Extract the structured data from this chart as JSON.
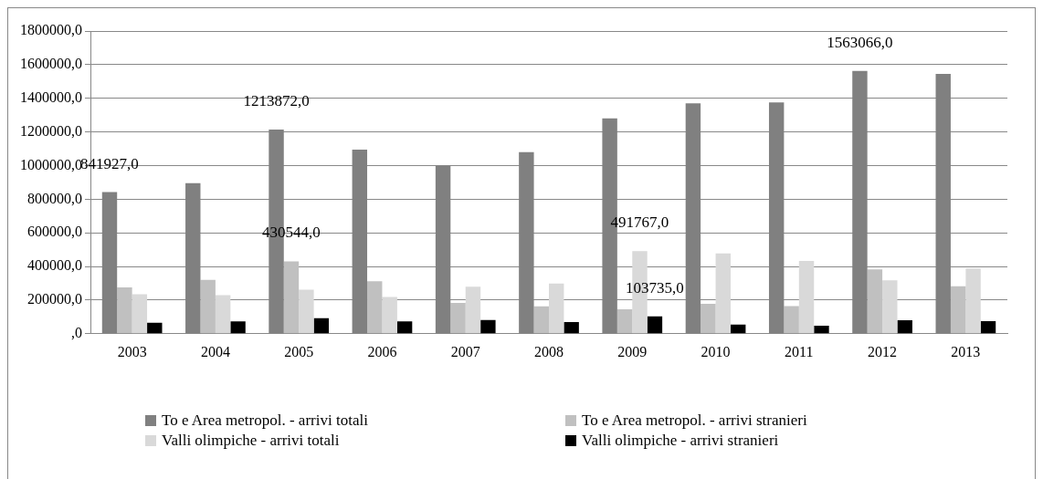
{
  "chart_data": {
    "type": "bar",
    "categories": [
      "2003",
      "2004",
      "2005",
      "2006",
      "2007",
      "2008",
      "2009",
      "2010",
      "2011",
      "2012",
      "2013"
    ],
    "series": [
      {
        "name": "To e Area metropol. - arrivi totali",
        "color": "#808080",
        "values": [
          841927,
          895000,
          1213872,
          1095000,
          1000000,
          1080000,
          1280000,
          1370000,
          1375000,
          1563066,
          1545000
        ],
        "value_labels": [
          "841927,0",
          null,
          "1213872,0",
          null,
          null,
          null,
          null,
          null,
          null,
          "1563066,0",
          null
        ]
      },
      {
        "name": "To e Area metropol. - arrivi stranieri",
        "color": "#c0c0c0",
        "values": [
          275000,
          320000,
          430544,
          312000,
          183000,
          163000,
          145000,
          178000,
          165000,
          383000,
          283000
        ],
        "value_labels": [
          null,
          null,
          "430544,0",
          null,
          null,
          null,
          null,
          null,
          null,
          null,
          null
        ]
      },
      {
        "name": "Valli olimpiche - arrivi totali",
        "color": "#d9d9d9",
        "values": [
          235000,
          230000,
          262000,
          218000,
          280000,
          298000,
          491767,
          478000,
          433000,
          318000,
          388000
        ],
        "value_labels": [
          null,
          null,
          null,
          null,
          null,
          null,
          "491767,0",
          null,
          null,
          null,
          null
        ]
      },
      {
        "name": "Valli olimpiche - arrivi stranieri",
        "color": "#000000",
        "values": [
          65000,
          73000,
          93000,
          73000,
          82000,
          70000,
          103735,
          55000,
          48000,
          80000,
          75000
        ],
        "value_labels": [
          null,
          null,
          null,
          null,
          null,
          null,
          "103735,0",
          null,
          null,
          null,
          null
        ]
      }
    ],
    "ylim": [
      0,
      1800000
    ],
    "yticks": [
      {
        "value": 0,
        "label": ",0"
      },
      {
        "value": 200000,
        "label": "200000,0"
      },
      {
        "value": 400000,
        "label": "400000,0"
      },
      {
        "value": 600000,
        "label": "600000,0"
      },
      {
        "value": 800000,
        "label": "800000,0"
      },
      {
        "value": 1000000,
        "label": "1000000,0"
      },
      {
        "value": 1200000,
        "label": "1200000,0"
      },
      {
        "value": 1400000,
        "label": "1400000,0"
      },
      {
        "value": 1600000,
        "label": "1600000,0"
      },
      {
        "value": 1800000,
        "label": "1800000,0"
      }
    ],
    "grid": "y",
    "legend": "bottom"
  }
}
